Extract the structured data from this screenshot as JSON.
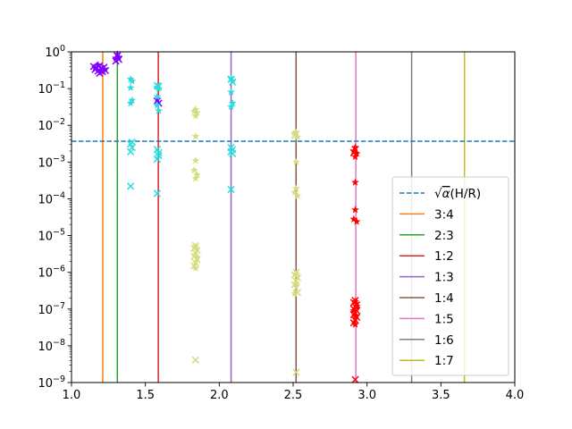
{
  "chart_data": {
    "type": "scatter",
    "title": "",
    "xlabel": "",
    "ylabel": "",
    "xlim": [
      1.0,
      4.0
    ],
    "ylim": [
      1e-09,
      1
    ],
    "yscale": "log",
    "grid": false,
    "legend_placement": "lower-right",
    "x_ticks": [
      {
        "value": 1.0,
        "label": "1.0"
      },
      {
        "value": 1.5,
        "label": "1.5"
      },
      {
        "value": 2.0,
        "label": "2.0"
      },
      {
        "value": 2.5,
        "label": "2.5"
      },
      {
        "value": 3.0,
        "label": "3.0"
      },
      {
        "value": 3.5,
        "label": "3.5"
      },
      {
        "value": 4.0,
        "label": "4.0"
      }
    ],
    "y_ticks": [
      {
        "exp": 0,
        "base": "10",
        "sup": "0"
      },
      {
        "exp": -1,
        "base": "10",
        "sup": "−1"
      },
      {
        "exp": -2,
        "base": "10",
        "sup": "−2"
      },
      {
        "exp": -3,
        "base": "10",
        "sup": "−3"
      },
      {
        "exp": -4,
        "base": "10",
        "sup": "−4"
      },
      {
        "exp": -5,
        "base": "10",
        "sup": "−5"
      },
      {
        "exp": -6,
        "base": "10",
        "sup": "−6"
      },
      {
        "exp": -7,
        "base": "10",
        "sup": "−7"
      },
      {
        "exp": -8,
        "base": "10",
        "sup": "−8"
      },
      {
        "exp": -9,
        "base": "10",
        "sup": "−9"
      }
    ],
    "hline": {
      "y": 0.0037,
      "color": "#1f77b4",
      "style": "dashed",
      "label_prefix": "√",
      "label_alpha": "α",
      "label_suffix": "(H/R)"
    },
    "vlines": [
      {
        "x": 1.2114,
        "label": "3:4",
        "color": "#ff7f0e"
      },
      {
        "x": 1.3104,
        "label": "2:3",
        "color": "#2ca02c"
      },
      {
        "x": 1.5874,
        "label": "1:2",
        "color": "#d62728"
      },
      {
        "x": 2.0801,
        "label": "1:3",
        "color": "#9467bd"
      },
      {
        "x": 2.5198,
        "label": "1:4",
        "color": "#8c564b"
      },
      {
        "x": 2.924,
        "label": "1:5",
        "color": "#e377c2"
      },
      {
        "x": 3.3019,
        "label": "1:6",
        "color": "#7f7f7f"
      },
      {
        "x": 3.6593,
        "label": "1:7",
        "color": "#bcbd22"
      }
    ],
    "scatter_groups": [
      {
        "color": "#8000ff",
        "marker": "x",
        "points": [
          [
            1.15,
            0.4
          ],
          [
            1.16,
            0.33
          ],
          [
            1.17,
            0.37
          ],
          [
            1.18,
            0.3
          ],
          [
            1.19,
            0.42
          ],
          [
            1.2,
            0.35
          ],
          [
            1.21,
            0.29
          ],
          [
            1.22,
            0.38
          ],
          [
            1.23,
            0.31
          ],
          [
            1.19,
            0.26
          ],
          [
            1.31,
            0.78
          ],
          [
            1.32,
            0.62
          ],
          [
            1.3,
            0.56
          ],
          [
            1.58,
            0.046
          ],
          [
            1.59,
            0.04
          ]
        ]
      },
      {
        "color": "#8000ff",
        "marker": "star",
        "points": [
          [
            1.16,
            0.37
          ],
          [
            1.18,
            0.44
          ],
          [
            1.2,
            0.3
          ],
          [
            1.22,
            0.34
          ],
          [
            1.31,
            0.85
          ],
          [
            1.3,
            0.68
          ],
          [
            1.32,
            0.72
          ],
          [
            1.58,
            0.05
          ]
        ]
      },
      {
        "color": "#2adddd",
        "marker": "x",
        "points": [
          [
            1.4,
            0.0031
          ],
          [
            1.41,
            0.0025
          ],
          [
            1.4,
            0.0019
          ],
          [
            1.41,
            0.0035
          ],
          [
            1.4,
            0.00022
          ],
          [
            1.58,
            0.0022
          ],
          [
            1.59,
            0.0015
          ],
          [
            1.58,
            0.0012
          ],
          [
            1.59,
            0.0018
          ],
          [
            1.58,
            0.00014
          ],
          [
            2.08,
            0.0025
          ],
          [
            2.09,
            0.0017
          ],
          [
            2.08,
            0.0019
          ],
          [
            2.09,
            0.0022
          ],
          [
            2.08,
            0.00018
          ],
          [
            2.08,
            0.18
          ],
          [
            2.09,
            0.15
          ],
          [
            1.58,
            0.12
          ],
          [
            1.59,
            0.115
          ]
        ]
      },
      {
        "color": "#2adddd",
        "marker": "star",
        "points": [
          [
            1.4,
            0.18
          ],
          [
            1.41,
            0.16
          ],
          [
            1.4,
            0.105
          ],
          [
            1.41,
            0.048
          ],
          [
            1.4,
            0.04
          ],
          [
            1.58,
            0.11
          ],
          [
            1.59,
            0.1
          ],
          [
            1.58,
            0.035
          ],
          [
            1.59,
            0.025
          ],
          [
            1.58,
            0.06
          ],
          [
            2.08,
            0.19
          ],
          [
            2.09,
            0.16
          ],
          [
            2.08,
            0.08
          ],
          [
            2.09,
            0.04
          ],
          [
            2.08,
            0.032
          ]
        ]
      },
      {
        "color": "#d4dd80",
        "marker": "x",
        "points": [
          [
            1.84,
            5.3e-06
          ],
          [
            1.83,
            4.5e-06
          ],
          [
            1.85,
            3.9e-06
          ],
          [
            1.84,
            3.3e-06
          ],
          [
            1.83,
            2.7e-06
          ],
          [
            1.85,
            2.2e-06
          ],
          [
            1.84,
            1.8e-06
          ],
          [
            1.83,
            1.5e-06
          ],
          [
            1.84,
            4.1e-09
          ],
          [
            2.52,
            1e-06
          ],
          [
            2.51,
            8.5e-07
          ],
          [
            2.53,
            7e-07
          ],
          [
            2.52,
            5.8e-07
          ],
          [
            2.51,
            4.6e-07
          ],
          [
            2.52,
            3.7e-07
          ],
          [
            2.53,
            2.8e-07
          ],
          [
            2.52,
            1.9e-09
          ],
          [
            2.52,
            0.0058
          ],
          [
            2.51,
            0.0052
          ]
        ]
      },
      {
        "color": "#d4dd80",
        "marker": "star",
        "points": [
          [
            1.84,
            0.027
          ],
          [
            1.83,
            0.024
          ],
          [
            1.85,
            0.022
          ],
          [
            1.84,
            0.018
          ],
          [
            1.84,
            0.005
          ],
          [
            1.84,
            0.0011
          ],
          [
            1.83,
            0.0006
          ],
          [
            1.85,
            0.00045
          ],
          [
            1.84,
            0.00036
          ],
          [
            1.84,
            5e-06
          ],
          [
            1.85,
            2.5e-06
          ],
          [
            1.84,
            1.3e-06
          ],
          [
            2.52,
            0.0065
          ],
          [
            2.51,
            0.006
          ],
          [
            2.53,
            0.0048
          ],
          [
            2.52,
            0.001
          ],
          [
            2.52,
            0.00019
          ],
          [
            2.51,
            0.00015
          ],
          [
            2.53,
            0.00012
          ],
          [
            2.52,
            9e-07
          ],
          [
            2.52,
            5e-07
          ],
          [
            2.51,
            2.6e-07
          ]
        ]
      },
      {
        "color": "#ff0000",
        "marker": "x",
        "points": [
          [
            2.92,
            1.7e-07
          ],
          [
            2.91,
            1.5e-07
          ],
          [
            2.93,
            1.3e-07
          ],
          [
            2.92,
            1.15e-07
          ],
          [
            2.91,
            1e-07
          ],
          [
            2.93,
            9e-08
          ],
          [
            2.92,
            8e-08
          ],
          [
            2.91,
            7e-08
          ],
          [
            2.93,
            6e-08
          ],
          [
            2.92,
            5e-08
          ],
          [
            2.91,
            4.2e-08
          ],
          [
            2.92,
            1.2e-09
          ],
          [
            2.92,
            0.0022
          ],
          [
            2.91,
            0.0018
          ]
        ]
      },
      {
        "color": "#ff0000",
        "marker": "star",
        "points": [
          [
            2.92,
            0.0025
          ],
          [
            2.91,
            0.002
          ],
          [
            2.93,
            0.0017
          ],
          [
            2.92,
            0.0014
          ],
          [
            2.92,
            0.00028
          ],
          [
            2.92,
            5e-05
          ],
          [
            2.91,
            2.8e-05
          ],
          [
            2.93,
            2.4e-05
          ],
          [
            2.92,
            1.6e-07
          ],
          [
            2.93,
            1.2e-07
          ],
          [
            2.91,
            9e-08
          ],
          [
            2.92,
            6.5e-08
          ],
          [
            2.92,
            3.8e-08
          ]
        ]
      }
    ]
  }
}
